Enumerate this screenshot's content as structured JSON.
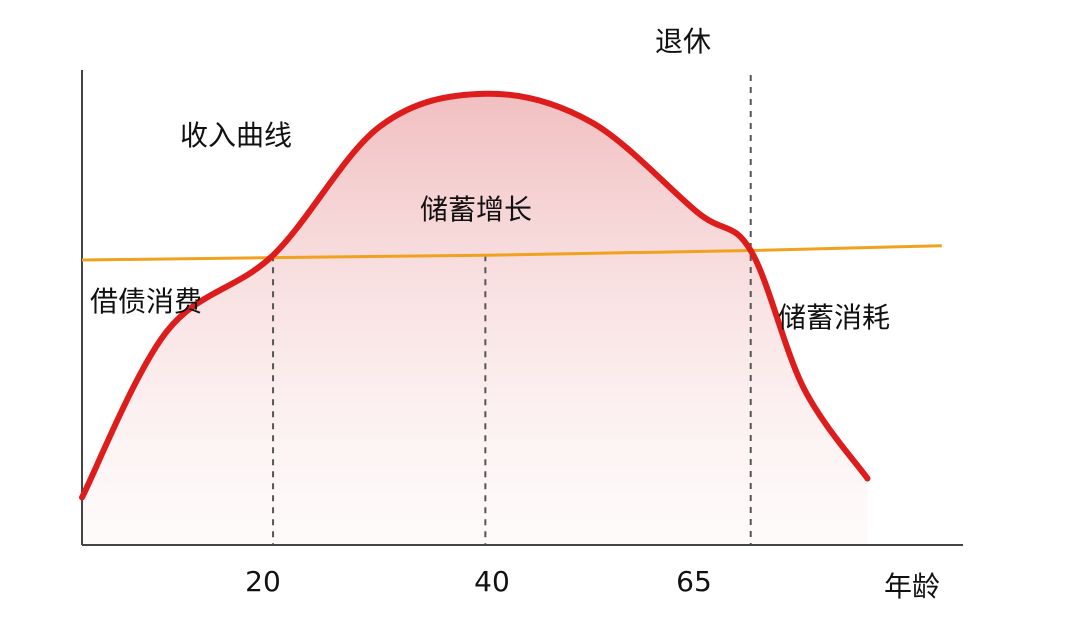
{
  "chart_data": {
    "type": "area",
    "xlabel": "年龄",
    "ylabel": "",
    "x_ticks": [
      "20",
      "40",
      "65"
    ],
    "annotations": {
      "retire": "退休",
      "income_curve": "收入曲线",
      "saving_growth": "储蓄增长",
      "debt_consumption": "借债消费",
      "saving_consumption": "储蓄消耗"
    },
    "xlim": [
      2,
      85
    ],
    "ylim": [
      0,
      100
    ],
    "series": [
      {
        "color": "#dd1c1c",
        "x": [
          2,
          10,
          20,
          30,
          40,
          50,
          60,
          65,
          70,
          76
        ],
        "y": [
          10,
          45,
          61,
          88,
          95,
          89,
          70,
          62,
          33,
          14
        ]
      },
      {
        "color": "#f0a21f",
        "x": [
          2,
          20,
          40,
          65,
          83
        ],
        "y": [
          60,
          60.5,
          61,
          62,
          63
        ]
      }
    ],
    "vlines": [
      20,
      40,
      65
    ],
    "grid": false
  }
}
